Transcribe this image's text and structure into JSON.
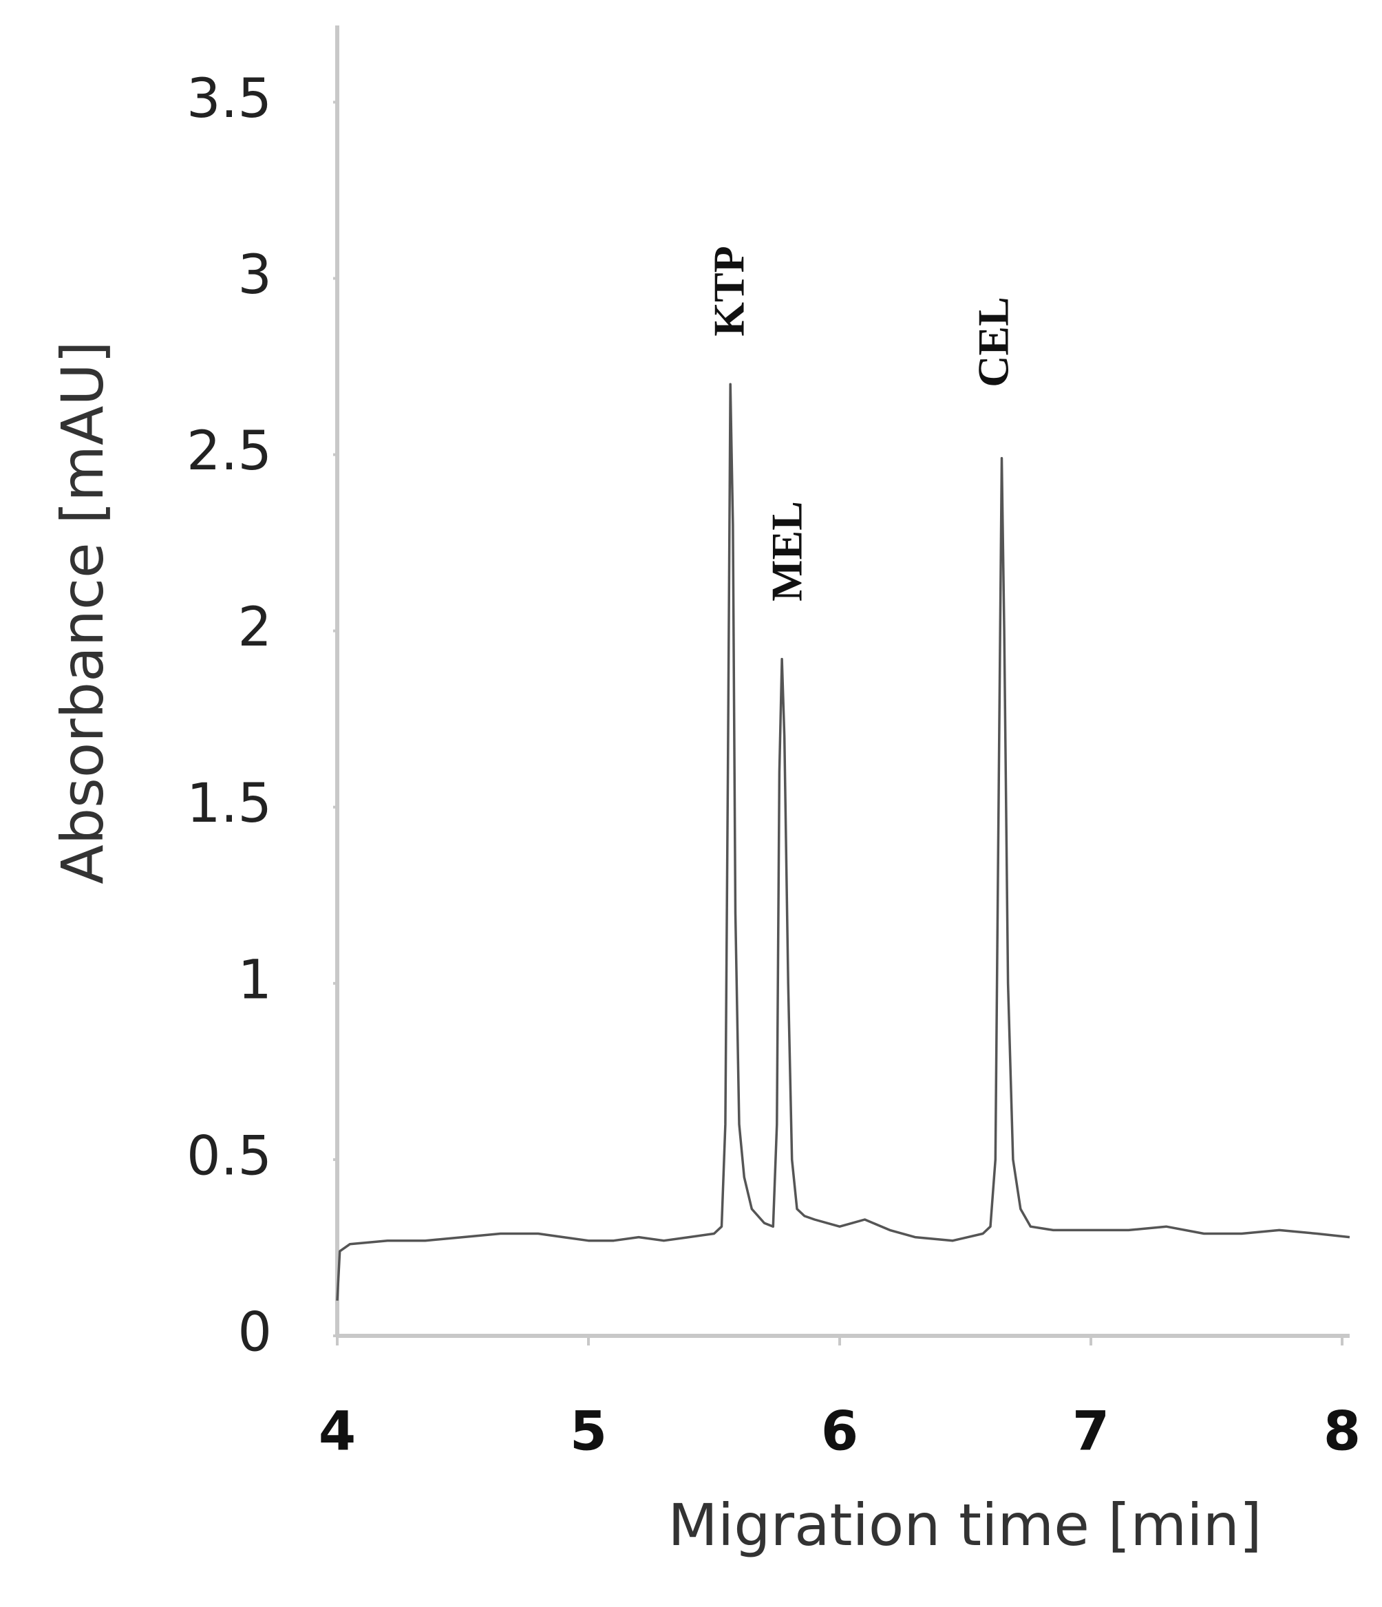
{
  "chart_data": {
    "type": "line",
    "x_label": "Migration time [min]",
    "y_label": "Absorbance [mAU]",
    "xlim": [
      4,
      8.03
    ],
    "ylim": [
      0,
      3.7
    ],
    "xticks": [
      4,
      5,
      6,
      7,
      8
    ],
    "yticks": [
      0,
      0.5,
      1,
      1.5,
      2,
      2.5,
      3,
      3.5
    ],
    "grid": false,
    "series": [
      {
        "color": "#555555",
        "x": [
          4.0,
          4.01,
          4.05,
          4.2,
          4.35,
          4.5,
          4.65,
          4.8,
          4.9,
          5.0,
          5.1,
          5.2,
          5.3,
          5.4,
          5.5,
          5.53,
          5.545,
          5.555,
          5.565,
          5.575,
          5.585,
          5.6,
          5.62,
          5.65,
          5.7,
          5.735,
          5.75,
          5.76,
          5.77,
          5.78,
          5.795,
          5.81,
          5.83,
          5.86,
          5.9,
          6.0,
          6.1,
          6.2,
          6.3,
          6.45,
          6.57,
          6.6,
          6.62,
          6.635,
          6.645,
          6.655,
          6.67,
          6.69,
          6.72,
          6.76,
          6.85,
          7.0,
          7.15,
          7.3,
          7.45,
          7.6,
          7.75,
          7.9,
          8.03
        ],
        "values": [
          0.1,
          0.24,
          0.26,
          0.27,
          0.27,
          0.28,
          0.29,
          0.29,
          0.28,
          0.27,
          0.27,
          0.28,
          0.27,
          0.28,
          0.29,
          0.31,
          0.6,
          1.6,
          2.7,
          2.3,
          1.2,
          0.6,
          0.45,
          0.36,
          0.32,
          0.31,
          0.6,
          1.6,
          1.92,
          1.7,
          1.0,
          0.5,
          0.36,
          0.34,
          0.33,
          0.31,
          0.33,
          0.3,
          0.28,
          0.27,
          0.29,
          0.31,
          0.5,
          1.7,
          2.49,
          2.0,
          1.0,
          0.5,
          0.36,
          0.31,
          0.3,
          0.3,
          0.3,
          0.31,
          0.29,
          0.29,
          0.3,
          0.29,
          0.28
        ]
      }
    ],
    "annotations": [
      "KTP",
      "MEL",
      "CEL"
    ]
  }
}
